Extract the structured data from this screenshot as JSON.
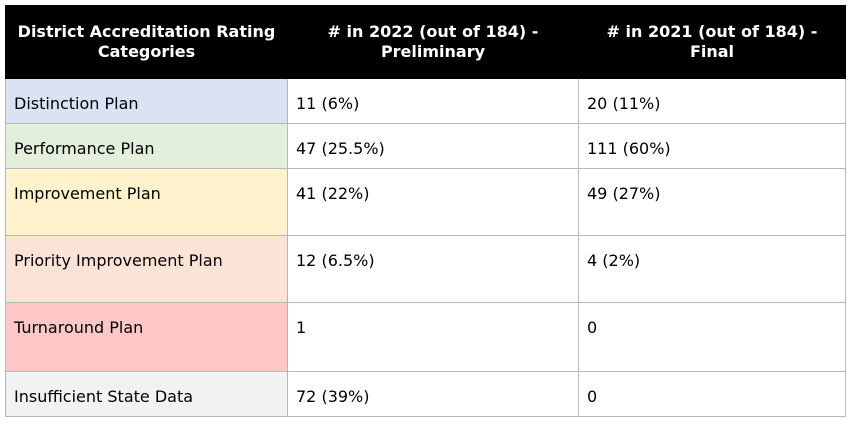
{
  "table": {
    "headers": [
      "District Accreditation Rating Categories",
      "# in 2022 (out of 184) - Preliminary",
      "# in 2021 (out of 184) - Final"
    ],
    "rows": [
      {
        "category": "Distinction Plan",
        "y2022": "11 (6%)",
        "y2021": "20 (11%)",
        "color": "#dae3f3"
      },
      {
        "category": "Performance Plan",
        "y2022": "47 (25.5%)",
        "y2021": "111 (60%)",
        "color": "#e2efda"
      },
      {
        "category": "Improvement Plan",
        "y2022": "41 (22%)",
        "y2021": "49 (27%)",
        "color": "#fff2cc"
      },
      {
        "category": "Priority Improvement Plan",
        "y2022": "12 (6.5%)",
        "y2021": "4 (2%)",
        "color": "#fbe4d5"
      },
      {
        "category": "Turnaround Plan",
        "y2022": "1",
        "y2021": "0",
        "color": "#ffc7c7"
      },
      {
        "category": "Insufficient State Data",
        "y2022": "72 (39%)",
        "y2021": "0",
        "color": "#f2f2f2"
      }
    ]
  }
}
